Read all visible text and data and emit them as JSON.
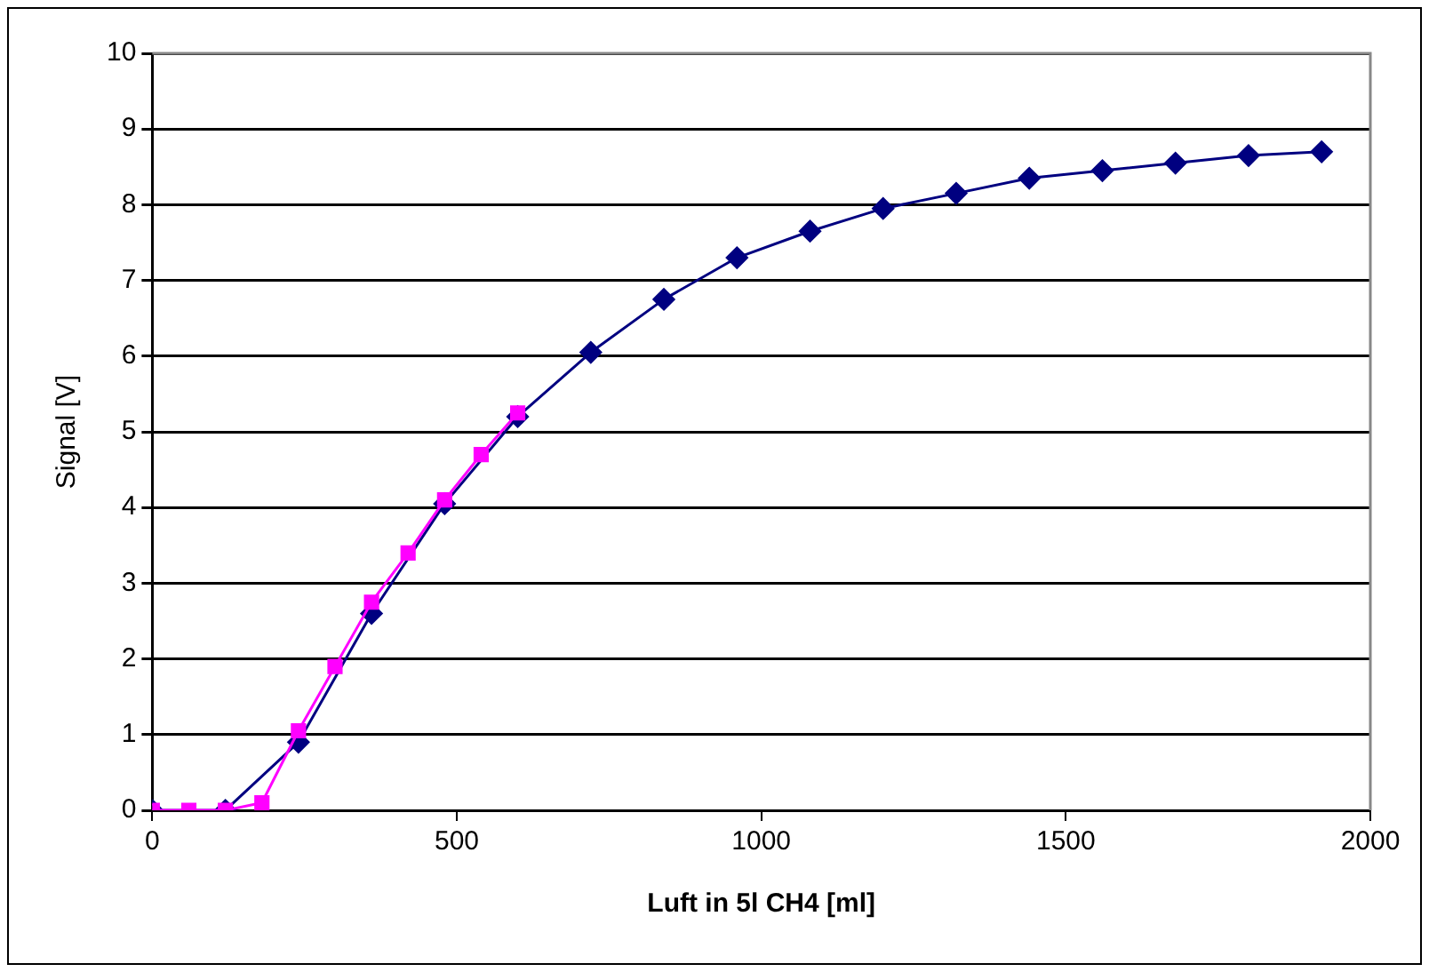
{
  "chart_data": {
    "type": "line",
    "xlabel": "Luft in 5l CH4 [ml]",
    "ylabel": "Signal [V]",
    "xlim": [
      0,
      2000
    ],
    "xticks": [
      0,
      500,
      1000,
      1500,
      2000
    ],
    "ylim": [
      0,
      10
    ],
    "yticks": [
      0,
      1,
      2,
      3,
      4,
      5,
      6,
      7,
      8,
      9,
      10
    ],
    "grid": "y",
    "legend": false,
    "series": [
      {
        "color": "#000080",
        "marker": "diamond",
        "x": [
          0,
          120,
          240,
          360,
          480,
          600,
          720,
          840,
          960,
          1080,
          1200,
          1320,
          1440,
          1560,
          1680,
          1800,
          1920
        ],
        "values": [
          0,
          0,
          0.9,
          2.6,
          4.05,
          5.2,
          6.05,
          6.75,
          7.3,
          7.65,
          7.95,
          8.15,
          8.35,
          8.45,
          8.55,
          8.65,
          8.7
        ]
      },
      {
        "color": "#ff00ff",
        "marker": "square",
        "x": [
          0,
          60,
          120,
          180,
          240,
          300,
          360,
          420,
          480,
          540,
          600
        ],
        "values": [
          0,
          0,
          0,
          0.1,
          1.05,
          1.9,
          2.75,
          3.4,
          4.1,
          4.7,
          5.25
        ]
      }
    ]
  }
}
